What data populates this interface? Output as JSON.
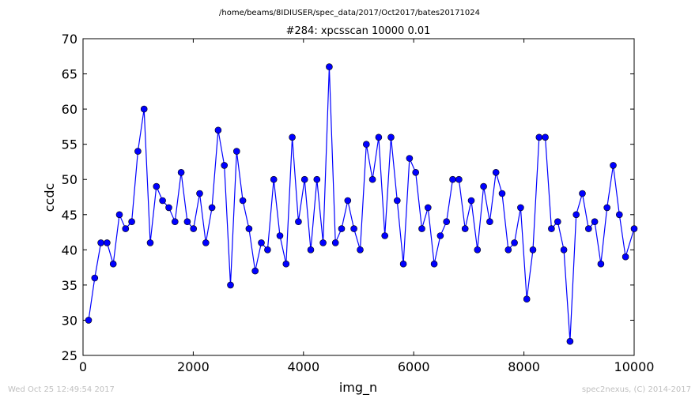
{
  "chart_data": {
    "type": "line",
    "suptitle": "/home/beams/8IDIUSER/spec_data/2017/Oct2017/bates20171024",
    "title": "#284: xpcsscan 10000 0.01",
    "xlabel": "img_n",
    "ylabel": "ccdc",
    "xlim": [
      0,
      10000
    ],
    "ylim": [
      25,
      70
    ],
    "xticks": [
      0,
      2000,
      4000,
      6000,
      8000,
      10000
    ],
    "yticks": [
      25,
      30,
      35,
      40,
      45,
      50,
      55,
      60,
      65,
      70
    ],
    "grid": false,
    "series": [
      {
        "color": "#0000ff",
        "marker": "circle",
        "x": [
          100,
          212,
          324,
          436,
          548,
          660,
          772,
          884,
          996,
          1108,
          1220,
          1332,
          1444,
          1556,
          1668,
          1780,
          1892,
          2004,
          2116,
          2228,
          2340,
          2452,
          2564,
          2676,
          2788,
          2900,
          3012,
          3124,
          3236,
          3348,
          3460,
          3572,
          3684,
          3796,
          3908,
          4020,
          4132,
          4244,
          4356,
          4468,
          4580,
          4692,
          4804,
          4916,
          5028,
          5140,
          5252,
          5364,
          5476,
          5588,
          5700,
          5812,
          5924,
          6036,
          6148,
          6260,
          6372,
          6484,
          6596,
          6708,
          6820,
          6932,
          7044,
          7156,
          7268,
          7380,
          7492,
          7604,
          7716,
          7828,
          7940,
          8052,
          8164,
          8276,
          8388,
          8500,
          8612,
          8724,
          8836,
          8948,
          9060,
          9172,
          9284,
          9396,
          9508,
          9620,
          9732,
          9844,
          10000
        ],
        "y": [
          30,
          36,
          41,
          41,
          38,
          45,
          43,
          44,
          54,
          60,
          41,
          49,
          47,
          46,
          44,
          51,
          44,
          43,
          48,
          41,
          46,
          57,
          52,
          35,
          54,
          47,
          43,
          37,
          41,
          40,
          50,
          42,
          38,
          56,
          44,
          50,
          40,
          50,
          41,
          66,
          41,
          43,
          47,
          43,
          40,
          55,
          50,
          56,
          42,
          56,
          47,
          38,
          53,
          51,
          43,
          46,
          38,
          42,
          44,
          50,
          50,
          43,
          47,
          40,
          49,
          44,
          51,
          48,
          40,
          41,
          46,
          33,
          40,
          56,
          56,
          43,
          44,
          40,
          27,
          45,
          48,
          43,
          44,
          38,
          46,
          52,
          45,
          39,
          43
        ]
      }
    ]
  },
  "footer": {
    "timestamp": "Wed Oct 25 12:49:54 2017",
    "credit": "spec2nexus, (C) 2014-2017"
  }
}
